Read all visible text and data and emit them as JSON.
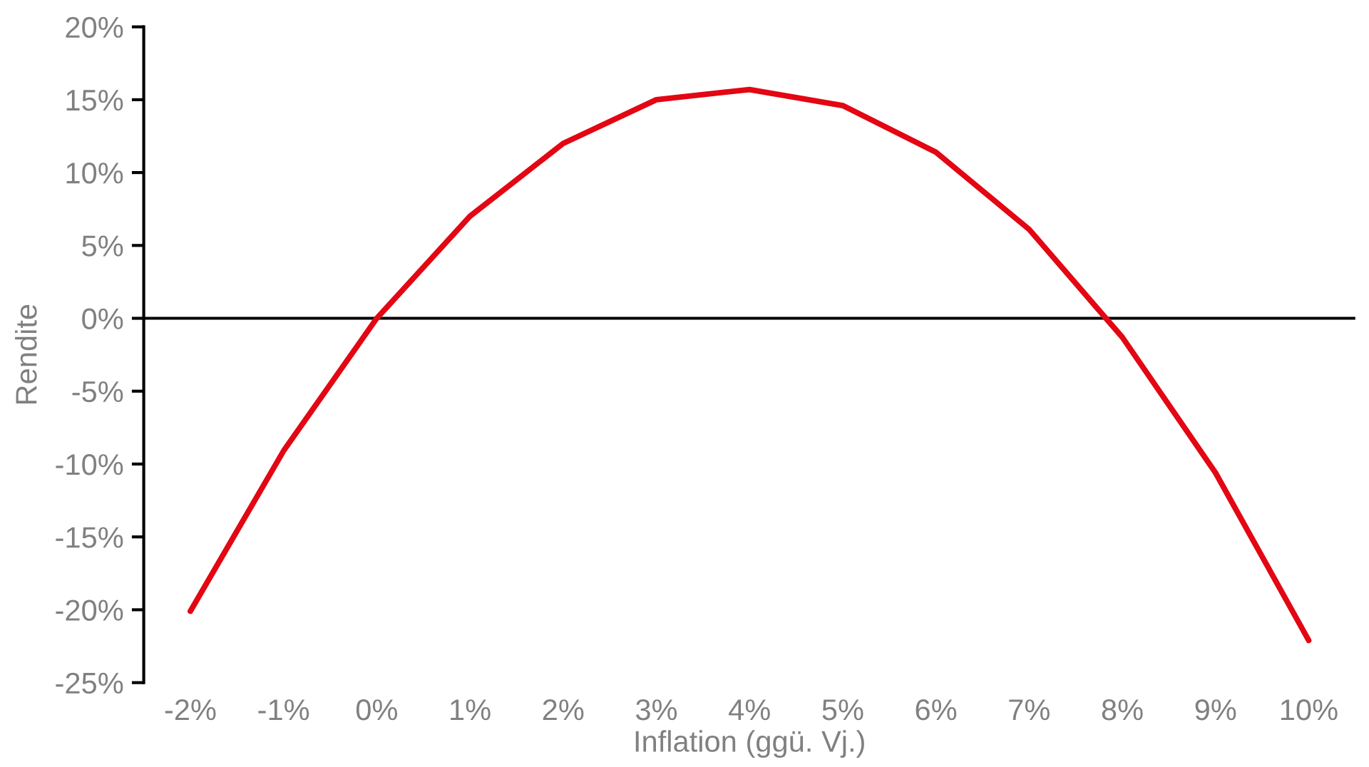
{
  "chart_data": {
    "type": "line",
    "xlabel": "Inflation (ggü. Vj.)",
    "ylabel": "Rendite",
    "categories": [
      "-2%",
      "-1%",
      "0%",
      "1%",
      "2%",
      "3%",
      "4%",
      "5%",
      "6%",
      "7%",
      "8%",
      "9%",
      "10%"
    ],
    "series": [
      {
        "color": "#e30613",
        "values": [
          -20.1,
          -9.1,
          0,
          7.0,
          12.0,
          15.0,
          15.7,
          14.6,
          11.4,
          6.1,
          -1.3,
          -10.6,
          -22.1
        ]
      }
    ],
    "ylim": [
      -25,
      20
    ],
    "yticks": [
      {
        "value": -25,
        "label": "-25%"
      },
      {
        "value": -20,
        "label": "-20%"
      },
      {
        "value": -15,
        "label": "-15%"
      },
      {
        "value": -10,
        "label": "-10%"
      },
      {
        "value": -5,
        "label": "-5%"
      },
      {
        "value": 0,
        "label": "0%"
      },
      {
        "value": 5,
        "label": "5%"
      },
      {
        "value": 10,
        "label": "10%"
      },
      {
        "value": 15,
        "label": "15%"
      },
      {
        "value": 20,
        "label": "20%"
      }
    ],
    "ref_lines": [
      {
        "axis": "y",
        "value": 0,
        "color": "#000000"
      }
    ],
    "grid": false,
    "legend": false,
    "marker": "none",
    "line_style": "solid"
  }
}
